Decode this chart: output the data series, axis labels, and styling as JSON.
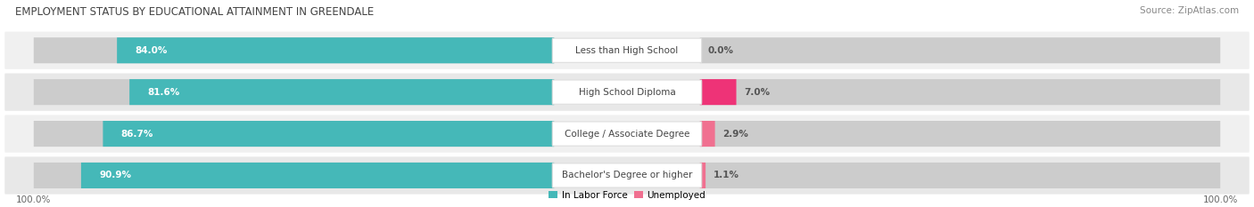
{
  "title": "EMPLOYMENT STATUS BY EDUCATIONAL ATTAINMENT IN GREENDALE",
  "source": "Source: ZipAtlas.com",
  "categories": [
    "Less than High School",
    "High School Diploma",
    "College / Associate Degree",
    "Bachelor's Degree or higher"
  ],
  "in_labor_force": [
    84.0,
    81.6,
    86.7,
    90.9
  ],
  "unemployed": [
    0.0,
    7.0,
    2.9,
    1.1
  ],
  "labor_force_color": "#45b8b8",
  "unemployed_color": "#f07090",
  "unemployed_color_row1": "#ee3377",
  "bar_bg_color": "#e0e0e0",
  "row_bg_even": "#f0f0f0",
  "row_bg_odd": "#e8e8e8",
  "label_text_color": "#444444",
  "value_in_bar_color": "#ffffff",
  "right_value_color": "#555555",
  "title_color": "#444444",
  "source_color": "#888888",
  "axis_label_color": "#666666",
  "legend_labor_color": "#45b8b8",
  "legend_unemployed_color": "#f07090",
  "figsize": [
    14.06,
    2.33
  ],
  "dpi": 100
}
